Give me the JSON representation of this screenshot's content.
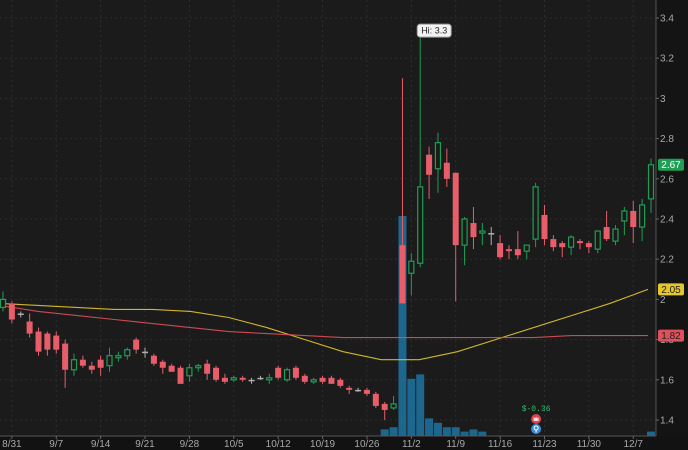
{
  "chart_data": {
    "type": "candlestick",
    "title": "",
    "y_axis": {
      "ticks": [
        1.4,
        1.6,
        1.8,
        2,
        2.2,
        2.4,
        2.6,
        2.8,
        3,
        3.2,
        3.4
      ],
      "tick_labels": [
        "1.4",
        "1.6",
        "1.8",
        "2",
        "2.2",
        "2.4",
        "2.6",
        "2.8",
        "3",
        "3.2",
        "3.4"
      ],
      "range": [
        1.33,
        3.48
      ]
    },
    "x_axis": {
      "tick_labels": [
        "8/31",
        "9/7",
        "9/14",
        "9/21",
        "9/28",
        "10/5",
        "10/12",
        "10/19",
        "10/26",
        "11/2",
        "11/9",
        "11/16",
        "11/23",
        "11/30",
        "12/7"
      ]
    },
    "grid": true,
    "annotations": {
      "high_label": "Hi: 3.3",
      "dividend_marker": "$-0.36",
      "event_icon_1": "earnings",
      "event_icon_2": "info"
    },
    "price_badges": [
      {
        "name": "last-price",
        "value": "2.67",
        "color": "#1f9e55"
      },
      {
        "name": "sma-fast",
        "value": "2.05",
        "color": "#e6c62e"
      },
      {
        "name": "sma-slow",
        "value": "1.82",
        "color": "#e0505a"
      }
    ],
    "candles": [
      {
        "d": "8/28",
        "o": 1.96,
        "h": 2.04,
        "l": 1.94,
        "c": 2.0
      },
      {
        "d": "8/31",
        "o": 1.98,
        "h": 1.99,
        "l": 1.88,
        "c": 1.9
      },
      {
        "d": "9/1",
        "o": 1.93,
        "h": 1.94,
        "l": 1.91,
        "c": 1.93
      },
      {
        "d": "9/2",
        "o": 1.89,
        "h": 1.93,
        "l": 1.81,
        "c": 1.83
      },
      {
        "d": "9/3",
        "o": 1.84,
        "h": 1.86,
        "l": 1.72,
        "c": 1.74
      },
      {
        "d": "9/4",
        "o": 1.83,
        "h": 1.84,
        "l": 1.72,
        "c": 1.75
      },
      {
        "d": "9/8",
        "o": 1.82,
        "h": 1.84,
        "l": 1.73,
        "c": 1.75
      },
      {
        "d": "9/9",
        "o": 1.78,
        "h": 1.8,
        "l": 1.56,
        "c": 1.65
      },
      {
        "d": "9/10",
        "o": 1.65,
        "h": 1.73,
        "l": 1.62,
        "c": 1.7
      },
      {
        "d": "9/11",
        "o": 1.7,
        "h": 1.72,
        "l": 1.66,
        "c": 1.67
      },
      {
        "d": "9/14",
        "o": 1.67,
        "h": 1.69,
        "l": 1.63,
        "c": 1.65
      },
      {
        "d": "9/15",
        "o": 1.7,
        "h": 1.72,
        "l": 1.62,
        "c": 1.66
      },
      {
        "d": "9/16",
        "o": 1.67,
        "h": 1.76,
        "l": 1.64,
        "c": 1.72
      },
      {
        "d": "9/17",
        "o": 1.71,
        "h": 1.74,
        "l": 1.69,
        "c": 1.72
      },
      {
        "d": "9/18",
        "o": 1.72,
        "h": 1.76,
        "l": 1.7,
        "c": 1.75
      },
      {
        "d": "9/21",
        "o": 1.8,
        "h": 1.81,
        "l": 1.73,
        "c": 1.75
      },
      {
        "d": "9/22",
        "o": 1.74,
        "h": 1.76,
        "l": 1.71,
        "c": 1.74
      },
      {
        "d": "9/23",
        "o": 1.72,
        "h": 1.73,
        "l": 1.67,
        "c": 1.68
      },
      {
        "d": "9/24",
        "o": 1.69,
        "h": 1.7,
        "l": 1.63,
        "c": 1.66
      },
      {
        "d": "9/25",
        "o": 1.67,
        "h": 1.68,
        "l": 1.64,
        "c": 1.64
      },
      {
        "d": "9/28",
        "o": 1.66,
        "h": 1.67,
        "l": 1.58,
        "c": 1.58
      },
      {
        "d": "9/29",
        "o": 1.62,
        "h": 1.68,
        "l": 1.59,
        "c": 1.66
      },
      {
        "d": "9/30",
        "o": 1.66,
        "h": 1.68,
        "l": 1.64,
        "c": 1.67
      },
      {
        "d": "10/1",
        "o": 1.68,
        "h": 1.7,
        "l": 1.6,
        "c": 1.63
      },
      {
        "d": "10/2",
        "o": 1.66,
        "h": 1.67,
        "l": 1.59,
        "c": 1.6
      },
      {
        "d": "10/5",
        "o": 1.61,
        "h": 1.63,
        "l": 1.58,
        "c": 1.59
      },
      {
        "d": "10/6",
        "o": 1.6,
        "h": 1.62,
        "l": 1.59,
        "c": 1.61
      },
      {
        "d": "10/7",
        "o": 1.61,
        "h": 1.62,
        "l": 1.59,
        "c": 1.6
      },
      {
        "d": "10/8",
        "o": 1.6,
        "h": 1.61,
        "l": 1.58,
        "c": 1.6
      },
      {
        "d": "10/9",
        "o": 1.61,
        "h": 1.62,
        "l": 1.6,
        "c": 1.61
      },
      {
        "d": "10/12",
        "o": 1.6,
        "h": 1.63,
        "l": 1.58,
        "c": 1.61
      },
      {
        "d": "10/13",
        "o": 1.66,
        "h": 1.67,
        "l": 1.6,
        "c": 1.61
      },
      {
        "d": "10/14",
        "o": 1.6,
        "h": 1.66,
        "l": 1.59,
        "c": 1.65
      },
      {
        "d": "10/15",
        "o": 1.66,
        "h": 1.67,
        "l": 1.6,
        "c": 1.61
      },
      {
        "d": "10/16",
        "o": 1.62,
        "h": 1.63,
        "l": 1.58,
        "c": 1.59
      },
      {
        "d": "10/19",
        "o": 1.59,
        "h": 1.61,
        "l": 1.58,
        "c": 1.6
      },
      {
        "d": "10/20",
        "o": 1.61,
        "h": 1.62,
        "l": 1.58,
        "c": 1.59
      },
      {
        "d": "10/21",
        "o": 1.61,
        "h": 1.62,
        "l": 1.58,
        "c": 1.58
      },
      {
        "d": "10/22",
        "o": 1.6,
        "h": 1.61,
        "l": 1.56,
        "c": 1.57
      },
      {
        "d": "10/23",
        "o": 1.56,
        "h": 1.57,
        "l": 1.53,
        "c": 1.55
      },
      {
        "d": "10/26",
        "o": 1.55,
        "h": 1.56,
        "l": 1.54,
        "c": 1.55
      },
      {
        "d": "10/27",
        "o": 1.55,
        "h": 1.56,
        "l": 1.52,
        "c": 1.53
      },
      {
        "d": "10/28",
        "o": 1.53,
        "h": 1.54,
        "l": 1.46,
        "c": 1.47
      },
      {
        "d": "10/29",
        "o": 1.48,
        "h": 1.49,
        "l": 1.4,
        "c": 1.45
      },
      {
        "d": "10/30",
        "o": 1.46,
        "h": 1.52,
        "l": 1.45,
        "c": 1.48
      },
      {
        "d": "11/2",
        "o": 2.27,
        "h": 3.1,
        "l": 1.98,
        "c": 1.98
      },
      {
        "d": "11/3",
        "o": 2.13,
        "h": 2.23,
        "l": 2.02,
        "c": 2.19
      },
      {
        "d": "11/4",
        "o": 2.18,
        "h": 3.3,
        "l": 2.16,
        "c": 2.56
      },
      {
        "d": "11/5",
        "o": 2.72,
        "h": 2.76,
        "l": 2.5,
        "c": 2.62
      },
      {
        "d": "11/6",
        "o": 2.65,
        "h": 2.83,
        "l": 2.53,
        "c": 2.78
      },
      {
        "d": "11/9",
        "o": 2.68,
        "h": 2.75,
        "l": 2.56,
        "c": 2.6
      },
      {
        "d": "11/10",
        "o": 2.63,
        "h": 2.63,
        "l": 1.99,
        "c": 2.27
      },
      {
        "d": "11/11",
        "o": 2.27,
        "h": 2.41,
        "l": 2.17,
        "c": 2.4
      },
      {
        "d": "11/12",
        "o": 2.38,
        "h": 2.46,
        "l": 2.25,
        "c": 2.31
      },
      {
        "d": "11/13",
        "o": 2.33,
        "h": 2.38,
        "l": 2.27,
        "c": 2.34
      },
      {
        "d": "11/16",
        "o": 2.33,
        "h": 2.36,
        "l": 2.27,
        "c": 2.33
      },
      {
        "d": "11/17",
        "o": 2.28,
        "h": 2.32,
        "l": 2.2,
        "c": 2.21
      },
      {
        "d": "11/18",
        "o": 2.25,
        "h": 2.27,
        "l": 2.2,
        "c": 2.24
      },
      {
        "d": "11/19",
        "o": 2.25,
        "h": 2.34,
        "l": 2.2,
        "c": 2.22
      },
      {
        "d": "11/20",
        "o": 2.24,
        "h": 2.27,
        "l": 2.2,
        "c": 2.27
      },
      {
        "d": "11/23",
        "o": 2.3,
        "h": 2.58,
        "l": 2.26,
        "c": 2.56
      },
      {
        "d": "11/24",
        "o": 2.42,
        "h": 2.47,
        "l": 2.27,
        "c": 2.3
      },
      {
        "d": "11/25",
        "o": 2.3,
        "h": 2.32,
        "l": 2.24,
        "c": 2.26
      },
      {
        "d": "11/27",
        "o": 2.28,
        "h": 2.29,
        "l": 2.21,
        "c": 2.26
      },
      {
        "d": "11/30",
        "o": 2.26,
        "h": 2.32,
        "l": 2.22,
        "c": 2.31
      },
      {
        "d": "12/1",
        "o": 2.29,
        "h": 2.3,
        "l": 2.25,
        "c": 2.28
      },
      {
        "d": "12/2",
        "o": 2.28,
        "h": 2.29,
        "l": 2.23,
        "c": 2.26
      },
      {
        "d": "12/3",
        "o": 2.25,
        "h": 2.34,
        "l": 2.23,
        "c": 2.34
      },
      {
        "d": "12/4",
        "o": 2.36,
        "h": 2.44,
        "l": 2.29,
        "c": 2.3
      },
      {
        "d": "12/7",
        "o": 2.29,
        "h": 2.37,
        "l": 2.27,
        "c": 2.35
      },
      {
        "d": "12/8",
        "o": 2.39,
        "h": 2.46,
        "l": 2.32,
        "c": 2.44
      },
      {
        "d": "12/9",
        "o": 2.44,
        "h": 2.49,
        "l": 2.28,
        "c": 2.36
      },
      {
        "d": "12/10",
        "o": 2.36,
        "h": 2.5,
        "l": 2.29,
        "c": 2.47
      },
      {
        "d": "12/11",
        "o": 2.5,
        "h": 2.7,
        "l": 2.43,
        "c": 2.67
      }
    ],
    "volume_bars_relative": [
      {
        "d": "10/29",
        "v": 0.03
      },
      {
        "d": "10/30",
        "v": 0.04
      },
      {
        "d": "11/2",
        "v": 1.0
      },
      {
        "d": "11/3",
        "v": 0.26
      },
      {
        "d": "11/4",
        "v": 0.28
      },
      {
        "d": "11/5",
        "v": 0.08
      },
      {
        "d": "11/6",
        "v": 0.06
      },
      {
        "d": "11/9",
        "v": 0.04
      },
      {
        "d": "11/10",
        "v": 0.04
      },
      {
        "d": "11/11",
        "v": 0.02
      },
      {
        "d": "11/12",
        "v": 0.03
      },
      {
        "d": "11/13",
        "v": 0.02
      },
      {
        "d": "12/11",
        "v": 0.02
      }
    ],
    "series": [
      {
        "name": "SMA fast",
        "color": "#e6c62e",
        "values": [
          1.98,
          1.97,
          1.96,
          1.95,
          1.95,
          1.94,
          1.91,
          1.86,
          1.8,
          1.74,
          1.7,
          1.7,
          1.74,
          1.8,
          1.86,
          1.92,
          1.98,
          2.05
        ]
      },
      {
        "name": "SMA slow",
        "color": "#e0505a",
        "values": [
          1.97,
          1.94,
          1.92,
          1.9,
          1.88,
          1.86,
          1.84,
          1.83,
          1.82,
          1.81,
          1.81,
          1.81,
          1.81,
          1.81,
          1.81,
          1.82,
          1.82,
          1.82
        ]
      }
    ],
    "xlabel": "",
    "ylabel": ""
  },
  "badges": {
    "last_price": "2.67",
    "sma_fast": "2.05",
    "sma_slow": "1.82"
  },
  "labels": {
    "high": "Hi: 3.3",
    "dividend": "$-0.36"
  }
}
